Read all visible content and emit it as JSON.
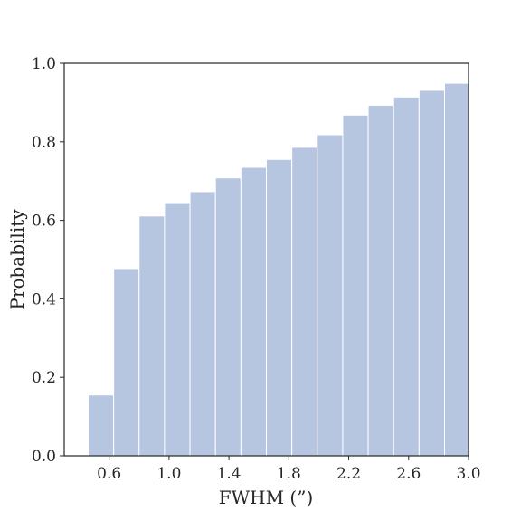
{
  "chart_data": {
    "type": "bar",
    "subtype": "cumulative-histogram",
    "title": "",
    "xlabel": "FWHM (”)",
    "ylabel": "Probability",
    "xlim": [
      0.3,
      3.0
    ],
    "ylim": [
      0.0,
      1.0
    ],
    "x_ticks": [
      "0.6",
      "1.0",
      "1.4",
      "1.8",
      "2.2",
      "2.6",
      "3.0"
    ],
    "y_ticks": [
      "0.0",
      "0.2",
      "0.4",
      "0.6",
      "0.8",
      "1.0"
    ],
    "bin_edges": [
      0.46,
      0.63,
      0.8,
      0.97,
      1.14,
      1.31,
      1.48,
      1.65,
      1.82,
      1.99,
      2.16,
      2.33,
      2.5,
      2.67,
      2.84,
      3.0
    ],
    "values": [
      0.155,
      0.477,
      0.611,
      0.645,
      0.673,
      0.708,
      0.735,
      0.755,
      0.786,
      0.818,
      0.868,
      0.893,
      0.914,
      0.931,
      0.949
    ],
    "bar_color": "#b6c6e0",
    "grid": false,
    "legend": "none"
  }
}
